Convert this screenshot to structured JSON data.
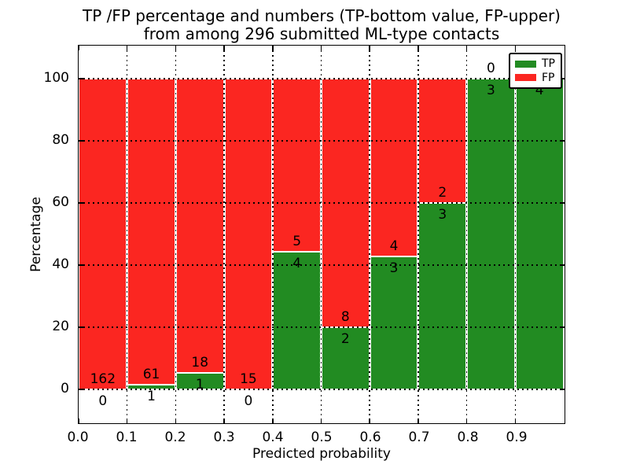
{
  "chart_data": {
    "type": "bar",
    "stacked": true,
    "title": "TP /FP percentage and numbers (TP-bottom value, FP-upper)\nfrom among 296 submitted ML-type contacts",
    "title_line1": "TP /FP percentage and numbers (TP-bottom value, FP-upper)",
    "title_line2": "from among 296 submitted ML-type contacts",
    "xlabel": "Predicted probability",
    "ylabel": "Percentage",
    "total_contacts": 296,
    "x_tick_labels": [
      "0.0",
      "0.1",
      "0.2",
      "0.3",
      "0.4",
      "0.5",
      "0.6",
      "0.7",
      "0.8",
      "0.9"
    ],
    "y_tick_values": [
      0,
      20,
      40,
      60,
      80,
      100
    ],
    "y_tick_labels": [
      "0",
      "20",
      "40",
      "60",
      "80",
      "100"
    ],
    "xlim": [
      0.0,
      1.0
    ],
    "ylim": [
      -11,
      110
    ],
    "grid": true,
    "legend_position": "upper right",
    "series": [
      {
        "name": "TP",
        "color": "#228b22"
      },
      {
        "name": "FP",
        "color": "#fb2621"
      }
    ],
    "bins": [
      {
        "x_start": 0.0,
        "x_end": 0.1,
        "tp": 0,
        "fp": 162,
        "tp_pct": 0.0
      },
      {
        "x_start": 0.1,
        "x_end": 0.2,
        "tp": 1,
        "fp": 61,
        "tp_pct": 1.6
      },
      {
        "x_start": 0.2,
        "x_end": 0.3,
        "tp": 1,
        "fp": 18,
        "tp_pct": 5.3
      },
      {
        "x_start": 0.3,
        "x_end": 0.4,
        "tp": 0,
        "fp": 15,
        "tp_pct": 0.0
      },
      {
        "x_start": 0.4,
        "x_end": 0.5,
        "tp": 4,
        "fp": 5,
        "tp_pct": 44.4
      },
      {
        "x_start": 0.5,
        "x_end": 0.6,
        "tp": 2,
        "fp": 8,
        "tp_pct": 20.0
      },
      {
        "x_start": 0.6,
        "x_end": 0.7,
        "tp": 3,
        "fp": 4,
        "tp_pct": 42.9
      },
      {
        "x_start": 0.7,
        "x_end": 0.8,
        "tp": 3,
        "fp": 2,
        "tp_pct": 60.0
      },
      {
        "x_start": 0.8,
        "x_end": 0.9,
        "tp": 3,
        "fp": 0,
        "tp_pct": 100.0
      },
      {
        "x_start": 0.9,
        "x_end": 1.0,
        "tp": 4,
        "fp": 0,
        "tp_pct": 100.0,
        "fp_label_hidden_behind_legend": true
      }
    ]
  },
  "legend": {
    "items": [
      {
        "label": "TP",
        "color": "#228b22"
      },
      {
        "label": "FP",
        "color": "#fb2621"
      }
    ]
  },
  "colors": {
    "tp_green": "#228b22",
    "fp_red": "#fb2621",
    "grid": "#000000",
    "background": "#ffffff"
  }
}
